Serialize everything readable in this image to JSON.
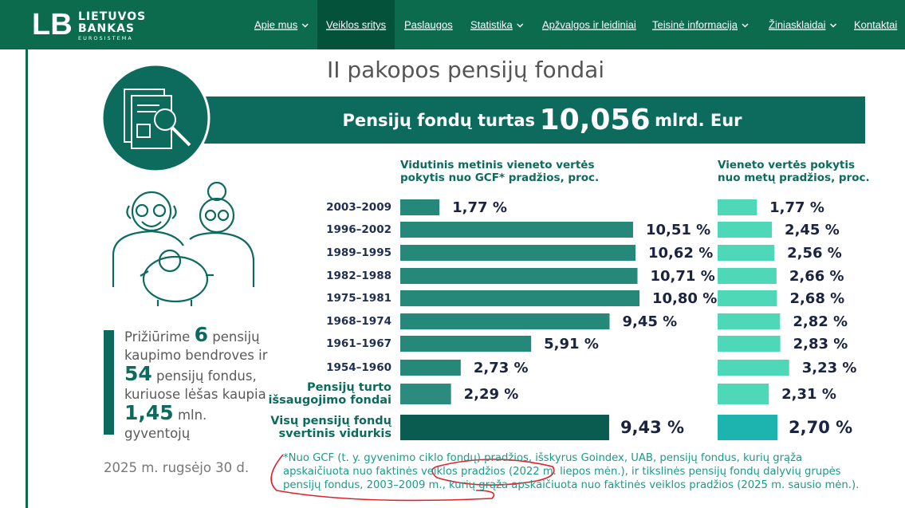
{
  "header": {
    "logo": {
      "mark": "LB",
      "line1": "LIETUVOS",
      "line2": "BANKAS",
      "line3": "EUROSISTEMA"
    },
    "nav": [
      {
        "label": "Apie mus",
        "dropdown": true
      },
      {
        "label": "Veiklos sritys",
        "active": true
      },
      {
        "label": "Paslaugos"
      },
      {
        "label": "Statistika",
        "dropdown": true
      },
      {
        "label": "Apžvalgos ir leidiniai"
      },
      {
        "label": "Teisinė informacija",
        "dropdown": true
      },
      {
        "label": "Žiniasklaidai",
        "dropdown": true
      },
      {
        "label": "Kontaktai"
      }
    ]
  },
  "title": "II pakopos pensijų fondai",
  "banner": {
    "label": "Pensijų fondų turtas",
    "amount": "10,056",
    "unit": "mlrd. Eur"
  },
  "stats": [
    "Prižiūrime",
    "6",
    "pensijų kaupimo bendroves ir",
    "54",
    "pensijų fondus, kuriuose lėšas kaupia",
    "1,45",
    "mln. gyventojų"
  ],
  "date": "2025 m. rugsėjo 30 d.",
  "footnote": "*Nuo GCF (t. y. gyvenimo ciklo fondų) pradžios, išskyrus Goindex, UAB, pensijų fondus, kurių grąža apskaičiuota nuo faktinės veiklos pradžios (2022 m. liepos mėn.), ir tikslinės pensijų fondų dalyvių grupės pensijų fondus, 2003–2009 m., kurių grąža apskaičiuota nuo faktinės veiklos pradžios (2025 m. sausio mėn.).",
  "chart_data": [
    {
      "type": "bar",
      "orientation": "horizontal",
      "title": "Vidutinis metinis vieneto vertės pokytis nuo GCF* pradžios, proc.",
      "categories": [
        "2003–2009",
        "1996–2002",
        "1989–1995",
        "1982–1988",
        "1975–1981",
        "1968–1974",
        "1961–1967",
        "1954–1960",
        "Pensijų turto išsaugojimo fondai",
        "Visų pensijų fondų svertinis vidurkis"
      ],
      "values": [
        1.77,
        10.51,
        10.62,
        10.71,
        10.8,
        9.45,
        5.91,
        2.73,
        2.29,
        9.43
      ],
      "value_labels": [
        "1,77 %",
        "10,51 %",
        "10,62 %",
        "10,71 %",
        "10,80 %",
        "9,45 %",
        "5,91 %",
        "2,73 %",
        "2,29 %",
        "9,43 %"
      ],
      "colors": [
        "#268878",
        "#268878",
        "#268878",
        "#268878",
        "#268878",
        "#268878",
        "#268878",
        "#268878",
        "#2b8b7e",
        "#0b5c50"
      ]
    },
    {
      "type": "bar",
      "orientation": "horizontal",
      "title": "Vieneto vertės pokytis nuo metų pradžios, proc.",
      "values": [
        1.77,
        2.45,
        2.56,
        2.66,
        2.68,
        2.82,
        2.83,
        3.23,
        2.31,
        2.7
      ],
      "value_labels": [
        "1,77 %",
        "2,45 %",
        "2,56 %",
        "2,66 %",
        "2,68 %",
        "2,82 %",
        "2,83 %",
        "3,23 %",
        "2,31 %",
        "2,70 %"
      ],
      "colors": [
        "#4fd8b8",
        "#4fd8b8",
        "#4fd8b8",
        "#4fd8b8",
        "#4fd8b8",
        "#4fd8b8",
        "#4fd8b8",
        "#4fd8b8",
        "#4fd8b8",
        "#1db4af"
      ]
    }
  ]
}
